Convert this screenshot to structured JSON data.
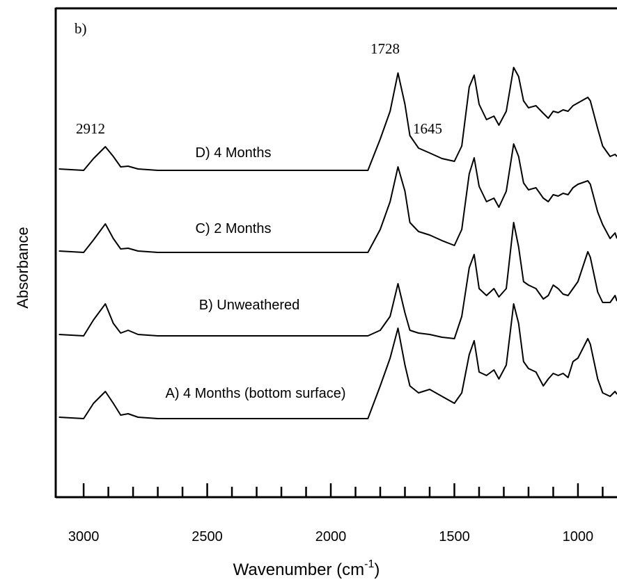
{
  "chart_data": {
    "type": "line",
    "ylabel": "Absorbance",
    "xlabel": {
      "main": "Wavenumber (cm",
      "sup": "-1",
      "end": ")"
    },
    "annotations": [
      "b)",
      "2912",
      "1728",
      "1645"
    ],
    "xlim": [
      3113,
      842
    ],
    "ylim": [
      0,
      703
    ],
    "xticks": [
      3000,
      2500,
      2000,
      1500,
      1000
    ],
    "minor_xticks": [
      2900,
      2800,
      2700,
      2600,
      2400,
      2300,
      2200,
      2100,
      1900,
      1800,
      1700,
      1600,
      1400,
      1300,
      1200,
      1100,
      900
    ],
    "x": [
      3100,
      3000,
      2960,
      2912,
      2880,
      2850,
      2820,
      2780,
      2700,
      1850,
      1800,
      1760,
      1728,
      1700,
      1680,
      1645,
      1600,
      1550,
      1500,
      1470,
      1440,
      1420,
      1400,
      1370,
      1340,
      1320,
      1290,
      1260,
      1240,
      1220,
      1200,
      1170,
      1140,
      1120,
      1100,
      1080,
      1060,
      1040,
      1020,
      1000,
      960,
      950,
      920,
      900,
      870,
      850,
      842
    ],
    "series": [
      {
        "name": "D) 4 Months",
        "color": "#000000",
        "values": [
          472,
          470,
          487,
          504,
          490,
          475,
          476,
          472,
          470,
          470,
          515,
          555,
          610,
          565,
          520,
          502,
          495,
          487,
          483,
          505,
          590,
          607,
          565,
          543,
          548,
          535,
          555,
          618,
          605,
          570,
          560,
          563,
          552,
          545,
          555,
          553,
          557,
          555,
          563,
          567,
          575,
          570,
          530,
          505,
          490,
          493,
          490
        ]
      },
      {
        "name": "C) 2 Months",
        "color": "#000000",
        "values": [
          354,
          352,
          370,
          393,
          372,
          357,
          358,
          354,
          352,
          352,
          385,
          425,
          475,
          440,
          395,
          382,
          377,
          369,
          362,
          385,
          465,
          488,
          447,
          425,
          430,
          417,
          440,
          508,
          490,
          452,
          442,
          445,
          430,
          425,
          435,
          433,
          437,
          435,
          445,
          450,
          455,
          450,
          410,
          392,
          372,
          380,
          372
        ]
      },
      {
        "name": "B) Unweathered",
        "color": "#000000",
        "values": [
          234,
          232,
          255,
          278,
          250,
          236,
          240,
          234,
          232,
          232,
          240,
          260,
          307,
          265,
          240,
          236,
          234,
          230,
          228,
          260,
          330,
          349,
          300,
          290,
          300,
          288,
          300,
          395,
          360,
          310,
          305,
          300,
          285,
          290,
          305,
          300,
          292,
          290,
          300,
          310,
          353,
          345,
          295,
          280,
          280,
          290,
          282
        ]
      },
      {
        "name": "A) 4 Months (bottom surface)",
        "color": "#000000",
        "values": [
          115,
          113,
          135,
          152,
          135,
          118,
          120,
          115,
          113,
          113,
          160,
          200,
          243,
          190,
          160,
          150,
          155,
          145,
          135,
          150,
          205,
          225,
          180,
          175,
          183,
          170,
          190,
          278,
          250,
          195,
          185,
          180,
          160,
          170,
          178,
          175,
          178,
          172,
          195,
          200,
          228,
          220,
          170,
          150,
          145,
          152,
          148
        ]
      }
    ]
  }
}
